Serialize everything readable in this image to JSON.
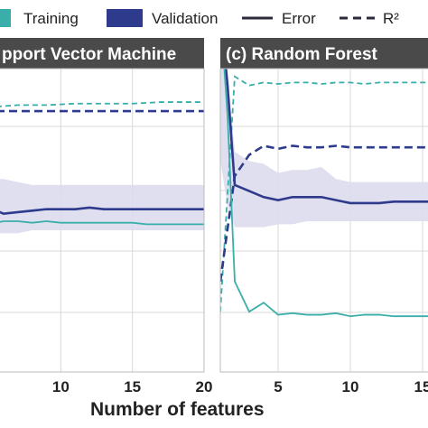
{
  "legend": {
    "training_label": "Training",
    "validation_label": "Validation",
    "error_label": "Error",
    "r2_label": "R²"
  },
  "colors": {
    "training": "#3aaea8",
    "validation": "#2e3a8c",
    "band": "#dcdcee",
    "title_bg": "#4a4a4a",
    "grid": "#d9d9d9"
  },
  "panels": {
    "left": {
      "title": "pport Vector Machine"
    },
    "right": {
      "title": "(c)   Random Forest"
    }
  },
  "xlabel": "Number of features",
  "chart_data": [
    {
      "type": "line",
      "title": "pport Vector Machine",
      "xlabel": "Number of features",
      "ylabel": "",
      "xlim": [
        5.5,
        20
      ],
      "ylim": [
        0,
        1
      ],
      "xticks": [
        10,
        15,
        20
      ],
      "grid": true,
      "legend_position": "top",
      "series": [
        {
          "name": "Training",
          "metric": "R²",
          "style": "dashed",
          "x": [
            5.5,
            7,
            9,
            11,
            13,
            15,
            17,
            19,
            20
          ],
          "values": [
            0.88,
            0.885,
            0.885,
            0.89,
            0.89,
            0.89,
            0.895,
            0.895,
            0.895
          ]
        },
        {
          "name": "Validation",
          "metric": "R²",
          "style": "dashed",
          "x": [
            5.5,
            7,
            9,
            11,
            13,
            15,
            17,
            19,
            20
          ],
          "values": [
            0.865,
            0.865,
            0.865,
            0.865,
            0.865,
            0.865,
            0.865,
            0.865,
            0.865
          ]
        },
        {
          "name": "Validation",
          "metric": "Error",
          "style": "solid",
          "x": [
            5.5,
            6,
            7,
            8,
            9,
            10,
            11,
            12,
            13,
            14,
            15,
            16,
            17,
            18,
            19,
            20
          ],
          "values": [
            0.535,
            0.525,
            0.53,
            0.535,
            0.54,
            0.54,
            0.54,
            0.545,
            0.54,
            0.54,
            0.54,
            0.54,
            0.54,
            0.54,
            0.54,
            0.54
          ],
          "band_low": [
            0.46,
            0.46,
            0.46,
            0.47,
            0.47,
            0.47,
            0.47,
            0.47,
            0.47,
            0.47,
            0.47,
            0.47,
            0.47,
            0.47,
            0.47,
            0.47
          ],
          "band_high": [
            0.64,
            0.64,
            0.63,
            0.62,
            0.62,
            0.62,
            0.62,
            0.62,
            0.62,
            0.62,
            0.62,
            0.62,
            0.62,
            0.62,
            0.62,
            0.62
          ]
        },
        {
          "name": "Training",
          "metric": "Error",
          "style": "solid",
          "x": [
            5.5,
            6,
            7,
            8,
            9,
            10,
            11,
            12,
            13,
            14,
            15,
            16,
            17,
            18,
            19,
            20
          ],
          "values": [
            0.495,
            0.5,
            0.5,
            0.495,
            0.5,
            0.495,
            0.495,
            0.495,
            0.495,
            0.495,
            0.495,
            0.49,
            0.49,
            0.49,
            0.49,
            0.49
          ]
        }
      ]
    },
    {
      "type": "line",
      "title": "(c)   Random Forest",
      "xlabel": "Number of features",
      "ylabel": "",
      "xlim": [
        1,
        16
      ],
      "ylim": [
        0,
        1
      ],
      "xticks": [
        5,
        10,
        15
      ],
      "grid": true,
      "legend_position": "top",
      "series": [
        {
          "name": "Training",
          "metric": "R²",
          "style": "dashed",
          "x": [
            1,
            2,
            3,
            4,
            5,
            6,
            7,
            8,
            9,
            10,
            11,
            12,
            13,
            14,
            15,
            16
          ],
          "values": [
            0.2,
            0.98,
            0.95,
            0.96,
            0.955,
            0.96,
            0.96,
            0.955,
            0.96,
            0.96,
            0.955,
            0.96,
            0.96,
            0.96,
            0.96,
            0.96
          ]
        },
        {
          "name": "Validation",
          "metric": "R²",
          "style": "dashed",
          "x": [
            1,
            2,
            3,
            4,
            5,
            6,
            7,
            8,
            9,
            10,
            11,
            12,
            13,
            14,
            15,
            16
          ],
          "values": [
            0.3,
            0.65,
            0.72,
            0.75,
            0.74,
            0.75,
            0.745,
            0.745,
            0.75,
            0.745,
            0.745,
            0.745,
            0.745,
            0.745,
            0.745,
            0.745
          ]
        },
        {
          "name": "Validation",
          "metric": "Error",
          "style": "solid",
          "x": [
            1,
            1.5,
            2,
            3,
            4,
            5,
            6,
            7,
            8,
            9,
            10,
            11,
            12,
            13,
            14,
            15,
            16
          ],
          "values": [
            1.2,
            0.95,
            0.62,
            0.6,
            0.58,
            0.57,
            0.58,
            0.58,
            0.58,
            0.57,
            0.56,
            0.56,
            0.56,
            0.565,
            0.565,
            0.565,
            0.565
          ],
          "band_low": [
            0.7,
            0.55,
            0.48,
            0.48,
            0.48,
            0.49,
            0.49,
            0.5,
            0.5,
            0.5,
            0.5,
            0.5,
            0.5,
            0.5,
            0.5,
            0.5,
            0.5
          ],
          "band_high": [
            1.3,
            1.0,
            0.73,
            0.7,
            0.69,
            0.66,
            0.67,
            0.67,
            0.68,
            0.64,
            0.63,
            0.63,
            0.63,
            0.63,
            0.63,
            0.63,
            0.63
          ]
        },
        {
          "name": "Training",
          "metric": "Error",
          "style": "solid",
          "x": [
            1,
            1.5,
            2,
            3,
            4,
            5,
            6,
            7,
            8,
            9,
            10,
            11,
            12,
            13,
            14,
            15,
            16
          ],
          "values": [
            1.2,
            0.85,
            0.3,
            0.2,
            0.23,
            0.19,
            0.195,
            0.19,
            0.19,
            0.195,
            0.185,
            0.19,
            0.19,
            0.185,
            0.185,
            0.185,
            0.185
          ]
        }
      ]
    }
  ]
}
